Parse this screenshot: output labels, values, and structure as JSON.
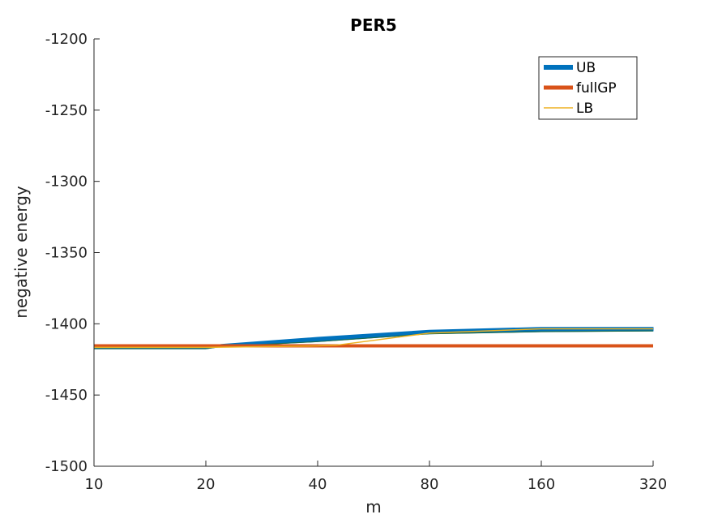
{
  "chart_data": {
    "type": "line",
    "title": "PER5",
    "xlabel": "m",
    "ylabel": "negative energy",
    "x_scale": "log2",
    "xlim": [
      10,
      320
    ],
    "ylim": [
      -1500,
      -1200
    ],
    "x_ticks": [
      10,
      20,
      40,
      80,
      160,
      320
    ],
    "x_tick_labels": [
      "10",
      "20",
      "40",
      "80",
      "160",
      "320"
    ],
    "y_ticks": [
      -1200,
      -1250,
      -1300,
      -1350,
      -1400,
      -1450,
      -1500
    ],
    "y_tick_labels": [
      "-1200",
      "-1250",
      "-1300",
      "-1350",
      "-1400",
      "-1450",
      "-1500"
    ],
    "legend_position": "top-right",
    "grid": false,
    "series": [
      {
        "name": "UB",
        "color": "#0072BD",
        "style": "band",
        "x": [
          10,
          20,
          22,
          40,
          80,
          160,
          320
        ],
        "upper": [
          -1416.5,
          -1416.5,
          -1414.5,
          -1409.5,
          -1404.5,
          -1402.5,
          -1402.5
        ],
        "lower": [
          -1417.5,
          -1417.5,
          -1416,
          -1412.5,
          -1407,
          -1405.5,
          -1405
        ]
      },
      {
        "name": "fullGP",
        "color": "#D95319",
        "style": "thick",
        "x": [
          10,
          320
        ],
        "y": [
          -1415.5,
          -1415.5
        ]
      },
      {
        "name": "LB",
        "color": "#EDB120",
        "style": "thin",
        "x": [
          10,
          20,
          40,
          45,
          80,
          160,
          320
        ],
        "y": [
          -1416.5,
          -1416.5,
          -1415.5,
          -1415,
          -1406.5,
          -1403.5,
          -1403.5
        ]
      }
    ]
  }
}
